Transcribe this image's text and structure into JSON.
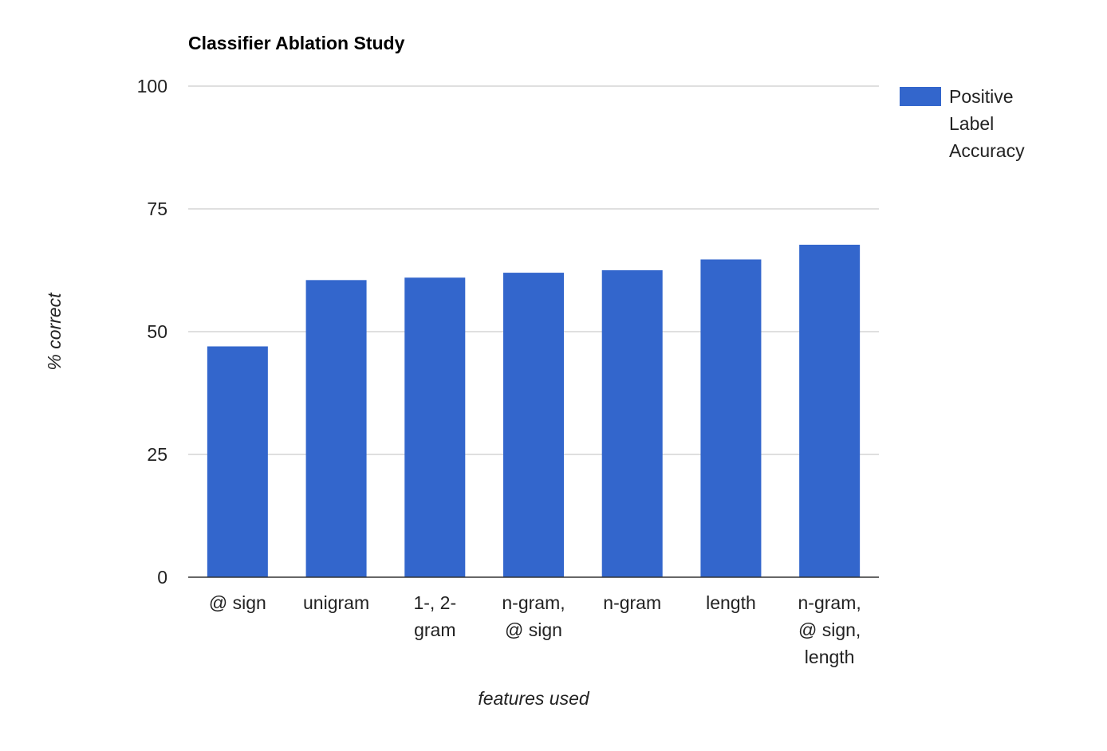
{
  "chart_data": {
    "type": "bar",
    "title": "Classifier Ablation Study",
    "xlabel": "features used",
    "ylabel": "% correct",
    "ylim": [
      0,
      100
    ],
    "yticks": [
      0,
      25,
      50,
      75,
      100
    ],
    "grid": true,
    "legend_position": "right",
    "categories": [
      [
        "@ sign"
      ],
      [
        "unigram"
      ],
      [
        "1-, 2-",
        "gram"
      ],
      [
        "n-gram,",
        "@ sign"
      ],
      [
        "n-gram"
      ],
      [
        "length"
      ],
      [
        "n-gram,",
        "@ sign,",
        "length"
      ]
    ],
    "series": [
      {
        "name": "Positive Label Accuracy",
        "name_lines": [
          "Positive",
          "Label",
          "Accuracy"
        ],
        "color": "#3366cc",
        "values": [
          47,
          60.5,
          61,
          62,
          62.5,
          64.7,
          67.7
        ]
      }
    ]
  }
}
